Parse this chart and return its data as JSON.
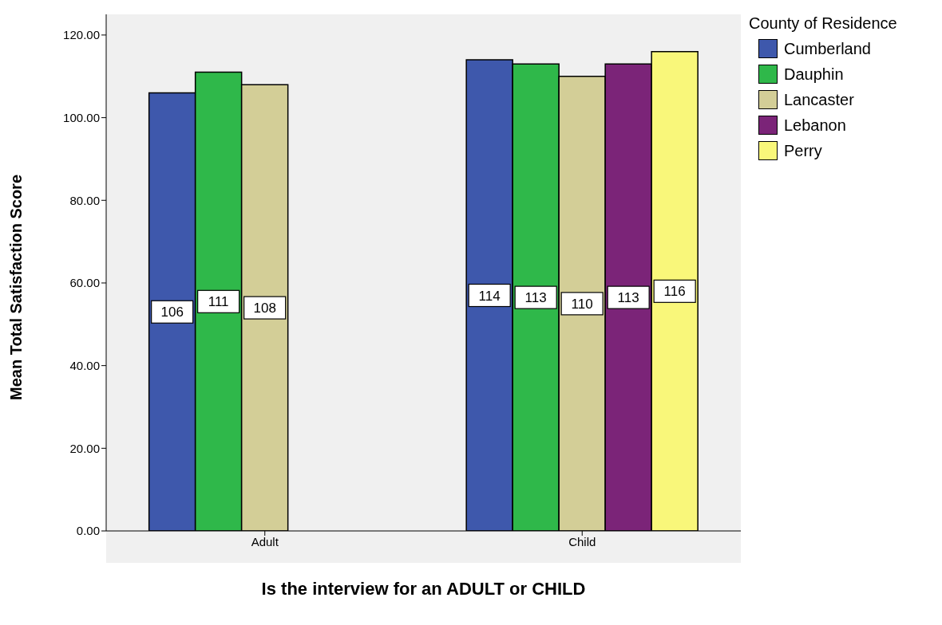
{
  "chart_data": {
    "type": "bar",
    "xlabel": "Is the interview for an ADULT or CHILD",
    "ylabel": "Mean Total Satisfaction Score",
    "legend_title": "County of Residence",
    "categories": [
      "Adult",
      "Child"
    ],
    "series": [
      {
        "name": "Cumberland",
        "color": "#3e58ac",
        "values": [
          106,
          114
        ]
      },
      {
        "name": "Dauphin",
        "color": "#2fb84a",
        "values": [
          111,
          113
        ]
      },
      {
        "name": "Lancaster",
        "color": "#d3ce97",
        "values": [
          108,
          110
        ]
      },
      {
        "name": "Lebanon",
        "color": "#7b2478",
        "values": [
          null,
          113
        ]
      },
      {
        "name": "Perry",
        "color": "#f9f77a",
        "values": [
          null,
          116
        ]
      }
    ],
    "ylim": [
      0,
      125
    ],
    "yticks": [
      {
        "value": 0,
        "label": "0.00"
      },
      {
        "value": 20,
        "label": "20.00"
      },
      {
        "value": 40,
        "label": "40.00"
      },
      {
        "value": 60,
        "label": "60.00"
      },
      {
        "value": 80,
        "label": "80.00"
      },
      {
        "value": 100,
        "label": "100.00"
      },
      {
        "value": 120,
        "label": "120.00"
      }
    ],
    "grid": false,
    "legend": "top right",
    "data_labels": true
  }
}
